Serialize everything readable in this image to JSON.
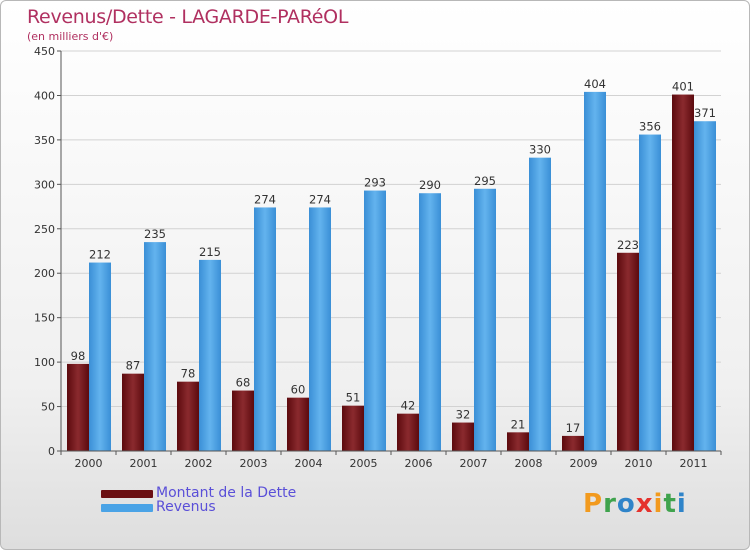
{
  "chart_data": {
    "type": "bar",
    "title": "Revenus/Dette - LAGARDE-PARéOL",
    "subtitle": "(en milliers d'€)",
    "categories": [
      "2000",
      "2001",
      "2002",
      "2003",
      "2004",
      "2005",
      "2006",
      "2007",
      "2008",
      "2009",
      "2010",
      "2011"
    ],
    "series": [
      {
        "name": "Montant de la Dette",
        "color": "#6b0f12",
        "values": [
          98,
          87,
          78,
          68,
          60,
          51,
          42,
          32,
          21,
          17,
          223,
          401
        ]
      },
      {
        "name": "Revenus",
        "color": "#4aa3e6",
        "values": [
          212,
          235,
          215,
          274,
          274,
          293,
          290,
          295,
          330,
          404,
          356,
          371
        ]
      }
    ],
    "ylim": [
      0,
      450
    ],
    "yticks": [
      0,
      50,
      100,
      150,
      200,
      250,
      300,
      350,
      400,
      450
    ],
    "grid": true,
    "legend": "bottom-left"
  },
  "logo": {
    "text": "Proxiti",
    "letters": [
      "P",
      "r",
      "o",
      "x",
      "i",
      "t",
      "i"
    ],
    "colors": [
      "#f29a1e",
      "#3fa34d",
      "#2f84c9",
      "#e5322d",
      "#f29a1e",
      "#3fa34d",
      "#2f84c9"
    ]
  }
}
